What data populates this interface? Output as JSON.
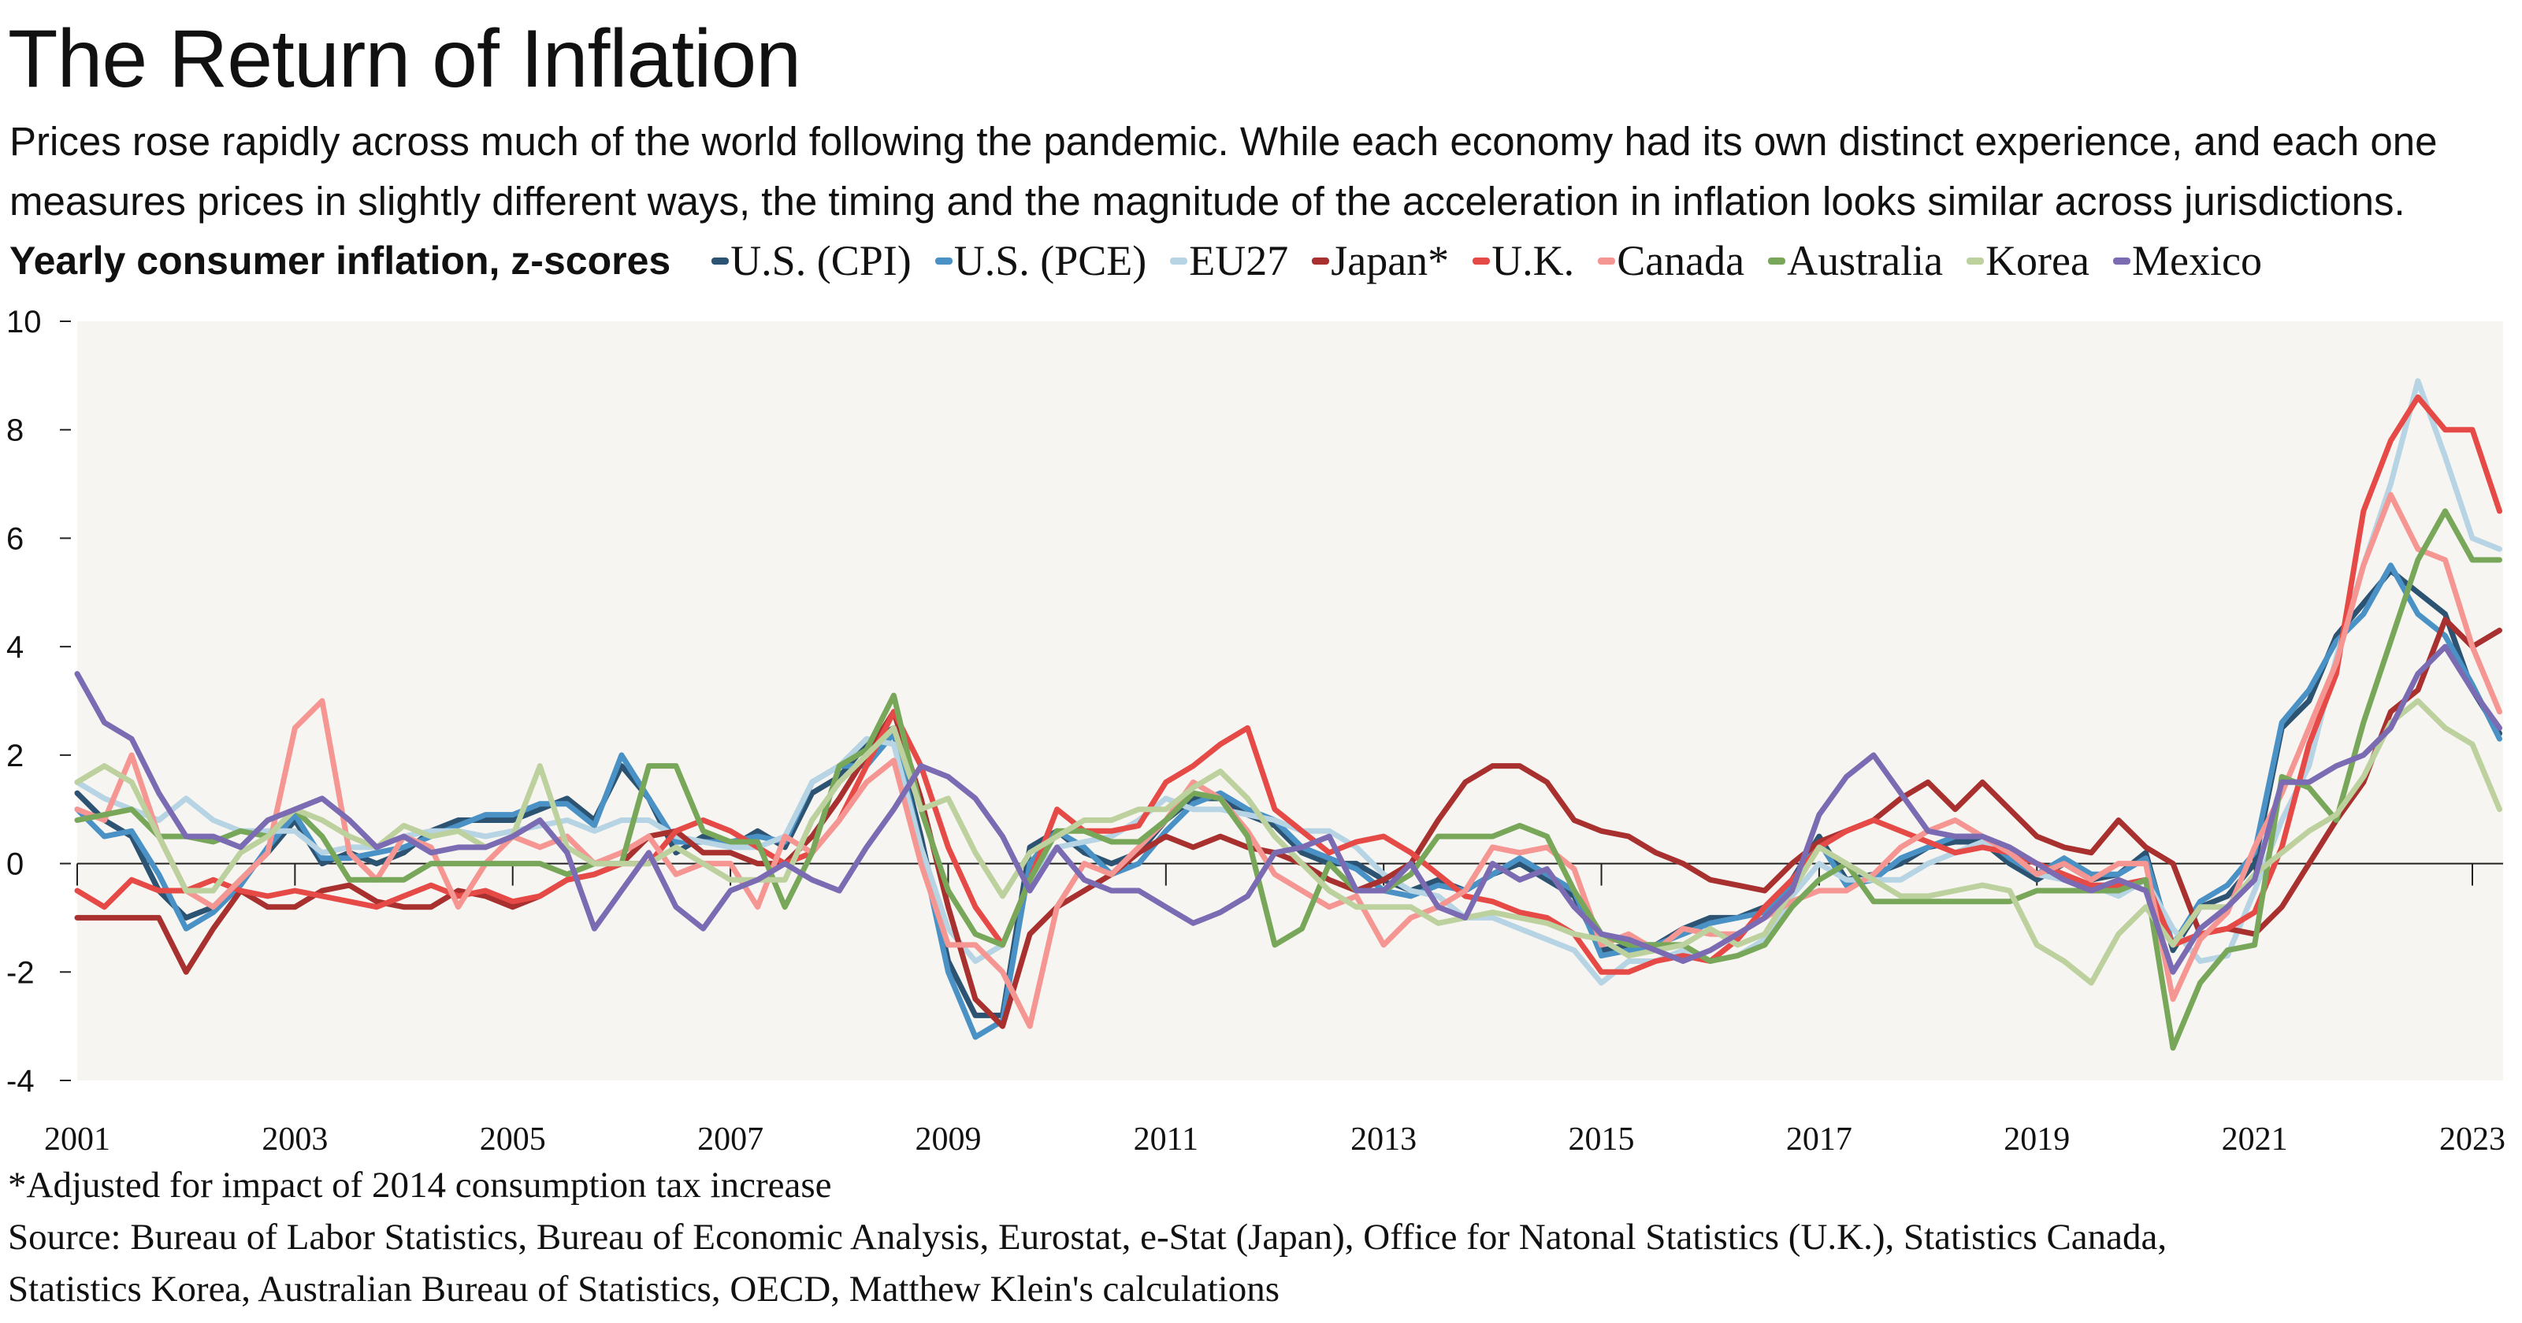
{
  "title": "The Return of Inflation",
  "subtitle": "Prices rose rapidly across much of the world following the pandemic. While each economy had its own distinct experience, and each one measures prices in slightly different ways, the timing and the magnitude of the acceleration in inflation looks similar across jurisdictions.",
  "footnote": "*Adjusted for impact of 2014 consumption tax increase",
  "source_line1": "Source: Bureau of Labor Statistics, Bureau of Economic Analysis, Eurostat, e-Stat (Japan), Office for Natonal Statistics (U.K.), Statistics Canada,",
  "source_line2": "Statistics Korea, Australian Bureau of Statistics, OECD, Matthew Klein's calculations",
  "chart_data": {
    "type": "line",
    "ylabel": "Yearly consumer inflation, z-scores",
    "ylim": [
      -4,
      10
    ],
    "yticks": [
      "10",
      "8",
      "6",
      "4",
      "2",
      "0",
      "-2",
      "-4"
    ],
    "xticks": [
      "2001",
      "2003",
      "2005",
      "2007",
      "2009",
      "2011",
      "2013",
      "2015",
      "2017",
      "2019",
      "2021",
      "2023"
    ],
    "xlim": [
      "2001-01",
      "2023-04"
    ],
    "grid": false,
    "legend_position": "top",
    "background": "#f6f5f1",
    "x": [
      "2001-01",
      "2001-04",
      "2001-07",
      "2001-10",
      "2002-01",
      "2002-04",
      "2002-07",
      "2002-10",
      "2003-01",
      "2003-04",
      "2003-07",
      "2003-10",
      "2004-01",
      "2004-04",
      "2004-07",
      "2004-10",
      "2005-01",
      "2005-04",
      "2005-07",
      "2005-10",
      "2006-01",
      "2006-04",
      "2006-07",
      "2006-10",
      "2007-01",
      "2007-04",
      "2007-07",
      "2007-10",
      "2008-01",
      "2008-04",
      "2008-07",
      "2008-10",
      "2009-01",
      "2009-04",
      "2009-07",
      "2009-10",
      "2010-01",
      "2010-04",
      "2010-07",
      "2010-10",
      "2011-01",
      "2011-04",
      "2011-07",
      "2011-10",
      "2012-01",
      "2012-04",
      "2012-07",
      "2012-10",
      "2013-01",
      "2013-04",
      "2013-07",
      "2013-10",
      "2014-01",
      "2014-04",
      "2014-07",
      "2014-10",
      "2015-01",
      "2015-04",
      "2015-07",
      "2015-10",
      "2016-01",
      "2016-04",
      "2016-07",
      "2016-10",
      "2017-01",
      "2017-04",
      "2017-07",
      "2017-10",
      "2018-01",
      "2018-04",
      "2018-07",
      "2018-10",
      "2019-01",
      "2019-04",
      "2019-07",
      "2019-10",
      "2020-01",
      "2020-04",
      "2020-07",
      "2020-10",
      "2021-01",
      "2021-04",
      "2021-07",
      "2021-10",
      "2022-01",
      "2022-04",
      "2022-07",
      "2022-10",
      "2023-01",
      "2023-04"
    ],
    "series": [
      {
        "name": "U.S. (CPI)",
        "color": "#2d5373",
        "values": [
          1.3,
          0.8,
          0.5,
          -0.5,
          -1,
          -0.8,
          -0.3,
          0.2,
          0.8,
          0,
          0.2,
          0,
          0.2,
          0.6,
          0.8,
          0.8,
          0.8,
          1,
          1.2,
          0.8,
          1.8,
          1.2,
          0.2,
          0.5,
          0.3,
          0.6,
          0.3,
          1.3,
          1.6,
          2.2,
          2.5,
          0.5,
          -1.8,
          -2.8,
          -2.8,
          0.3,
          0.6,
          0.2,
          0,
          0.2,
          0.8,
          1.2,
          1.2,
          0.9,
          0.7,
          0.2,
          0,
          0,
          -0.3,
          -0.5,
          -0.3,
          -0.5,
          -0.2,
          0,
          -0.3,
          -0.6,
          -1.6,
          -1.5,
          -1.5,
          -1.2,
          -1,
          -1,
          -0.8,
          -0.3,
          0.5,
          -0.3,
          -0.2,
          0,
          0.3,
          0.4,
          0.4,
          0,
          -0.3,
          0,
          -0.3,
          -0.2,
          0.2,
          -1.6,
          -0.8,
          -0.6,
          0,
          2.5,
          3,
          4.2,
          4.8,
          5.4,
          5,
          4.6,
          3.2,
          2.4
        ]
      },
      {
        "name": "U.S. (PCE)",
        "color": "#4a92c6",
        "values": [
          1,
          0.5,
          0.6,
          -0.2,
          -1.2,
          -0.9,
          -0.4,
          0.3,
          0.9,
          0.1,
          0.1,
          0.2,
          0.3,
          0.5,
          0.7,
          0.9,
          0.9,
          1.1,
          1.1,
          0.7,
          2,
          1.2,
          0.4,
          0.4,
          0.4,
          0.5,
          0.4,
          1.5,
          1.8,
          1.8,
          2.4,
          0.3,
          -2,
          -3.2,
          -2.9,
          0,
          0.6,
          0.3,
          -0.2,
          0,
          0.6,
          1.1,
          1.3,
          1,
          0.8,
          0.3,
          0.1,
          -0.1,
          -0.5,
          -0.6,
          -0.4,
          -0.5,
          -0.2,
          0.1,
          -0.2,
          -0.5,
          -1.7,
          -1.6,
          -1.5,
          -1.3,
          -1.1,
          -1,
          -0.9,
          -0.4,
          0.4,
          -0.4,
          -0.3,
          0.1,
          0.3,
          0.5,
          0.5,
          0.1,
          -0.2,
          0.1,
          -0.2,
          -0.2,
          0.1,
          -1.5,
          -0.7,
          -0.4,
          0.2,
          2.6,
          3.2,
          4.1,
          4.6,
          5.5,
          4.6,
          4.2,
          3.3,
          2.3
        ]
      },
      {
        "name": "EU27",
        "color": "#b6d4e4",
        "values": [
          1.5,
          1.2,
          1,
          0.8,
          1.2,
          0.8,
          0.6,
          0.6,
          0.6,
          0.2,
          0.3,
          0.3,
          0.5,
          0.6,
          0.6,
          0.5,
          0.6,
          0.7,
          0.8,
          0.6,
          0.8,
          0.8,
          0.5,
          0.4,
          0.3,
          0.3,
          0.5,
          1.5,
          1.8,
          2.3,
          2.2,
          0.3,
          -1.2,
          -1.8,
          -1.5,
          -0.3,
          0.3,
          0.4,
          0.5,
          0.8,
          1.2,
          1,
          1,
          0.9,
          0.8,
          0.6,
          0.6,
          0.3,
          -0.2,
          -0.5,
          -0.6,
          -1,
          -1,
          -1.2,
          -1.4,
          -1.6,
          -2.2,
          -1.8,
          -1.8,
          -1.6,
          -1.8,
          -1.7,
          -1.4,
          -0.6,
          0,
          -0.3,
          -0.3,
          -0.3,
          0,
          0.2,
          0.4,
          0.2,
          -0.2,
          -0.3,
          -0.4,
          -0.6,
          -0.3,
          -1.2,
          -1.8,
          -1.7,
          -0.5,
          0.8,
          1.8,
          3.8,
          5.5,
          7,
          8.9,
          7.5,
          6,
          5.8
        ]
      },
      {
        "name": "Japan*",
        "color": "#a8302e",
        "values": [
          -1,
          -1,
          -1,
          -1,
          -2,
          -1.2,
          -0.5,
          -0.8,
          -0.8,
          -0.5,
          -0.4,
          -0.7,
          -0.8,
          -0.8,
          -0.5,
          -0.6,
          -0.8,
          -0.6,
          -0.3,
          -0.2,
          0,
          0.5,
          0.6,
          0.2,
          0.2,
          0,
          0,
          0.5,
          1.2,
          2,
          2.8,
          1.2,
          -0.8,
          -2.5,
          -3,
          -1.3,
          -0.8,
          -0.5,
          -0.2,
          0.2,
          0.5,
          0.3,
          0.5,
          0.3,
          0.2,
          0,
          -0.3,
          -0.5,
          -0.3,
          0,
          0.8,
          1.5,
          1.8,
          1.8,
          1.5,
          0.8,
          0.6,
          0.5,
          0.2,
          0,
          -0.3,
          -0.4,
          -0.5,
          0,
          0.4,
          0.6,
          0.8,
          1.2,
          1.5,
          1,
          1.5,
          1,
          0.5,
          0.3,
          0.2,
          0.8,
          0.3,
          0,
          -1.3,
          -1.2,
          -1.3,
          -0.8,
          0,
          0.8,
          1.5,
          2.8,
          3.2,
          4.5,
          4,
          4.3
        ]
      },
      {
        "name": "U.K.",
        "color": "#e64a47",
        "values": [
          -0.5,
          -0.8,
          -0.3,
          -0.5,
          -0.5,
          -0.3,
          -0.5,
          -0.6,
          -0.5,
          -0.6,
          -0.7,
          -0.8,
          -0.6,
          -0.4,
          -0.6,
          -0.5,
          -0.7,
          -0.6,
          -0.3,
          -0.2,
          0,
          0,
          0.6,
          0.8,
          0.6,
          0.3,
          0,
          0.2,
          0.8,
          1.8,
          2.8,
          1.8,
          0.3,
          -0.8,
          -1.5,
          -0.3,
          1,
          0.6,
          0.6,
          0.7,
          1.5,
          1.8,
          2.2,
          2.5,
          1,
          0.6,
          0.2,
          0.4,
          0.5,
          0.2,
          -0.2,
          -0.6,
          -0.7,
          -0.9,
          -1,
          -1.3,
          -2,
          -2,
          -1.8,
          -1.7,
          -1.8,
          -1.4,
          -0.8,
          -0.3,
          0.3,
          0.6,
          0.8,
          0.6,
          0.4,
          0.2,
          0.3,
          0.2,
          0,
          -0.2,
          -0.4,
          -0.4,
          -0.3,
          -1.5,
          -1.3,
          -1.2,
          -0.9,
          0.3,
          2.2,
          3.5,
          6.5,
          7.8,
          8.6,
          8,
          8,
          6.5
        ]
      },
      {
        "name": "Canada",
        "color": "#f59693",
        "values": [
          1,
          0.8,
          2,
          0.5,
          -0.5,
          -0.8,
          -0.3,
          0.2,
          2.5,
          3,
          0.2,
          -0.3,
          0.5,
          0.3,
          -0.8,
          0,
          0.5,
          0.3,
          0.5,
          0,
          0.2,
          0.5,
          -0.2,
          0,
          0,
          -0.8,
          0.5,
          0.2,
          0.8,
          1.5,
          1.9,
          0,
          -1.5,
          -1.5,
          -2,
          -3,
          -0.8,
          0,
          -0.2,
          0.3,
          0.8,
          1.5,
          1.2,
          0.6,
          -0.2,
          -0.5,
          -0.8,
          -0.6,
          -1.5,
          -1,
          -0.8,
          -0.5,
          0.3,
          0.2,
          0.3,
          -0.1,
          -1.5,
          -1.3,
          -1.6,
          -1.2,
          -1.3,
          -1.3,
          -1,
          -0.7,
          -0.5,
          -0.5,
          -0.2,
          0.3,
          0.6,
          0.8,
          0.5,
          0.2,
          -0.2,
          0,
          -0.3,
          0,
          0,
          -2.5,
          -1.4,
          -0.9,
          0.3,
          1.3,
          2.5,
          3.7,
          5.5,
          6.8,
          5.8,
          5.6,
          4,
          2.8
        ]
      },
      {
        "name": "Australia",
        "color": "#78a75a",
        "values": [
          0.8,
          0.9,
          1,
          0.5,
          0.5,
          0.4,
          0.6,
          0.5,
          1,
          0.5,
          -0.3,
          -0.3,
          -0.3,
          0,
          0,
          0,
          0,
          0,
          -0.2,
          0,
          0,
          1.8,
          1.8,
          0.6,
          0.4,
          0.4,
          -0.8,
          0.2,
          1.8,
          2.1,
          3.1,
          1,
          -0.5,
          -1.3,
          -1.5,
          -0.3,
          0.6,
          0.6,
          0.4,
          0.4,
          0.8,
          1.3,
          1.2,
          0.5,
          -1.5,
          -1.2,
          0,
          -0.5,
          -0.5,
          -0.2,
          0.5,
          0.5,
          0.5,
          0.7,
          0.5,
          -0.5,
          -1.3,
          -1.5,
          -1.5,
          -1.5,
          -1.8,
          -1.7,
          -1.5,
          -0.8,
          -0.3,
          0,
          -0.7,
          -0.7,
          -0.7,
          -0.7,
          -0.7,
          -0.7,
          -0.5,
          -0.5,
          -0.5,
          -0.5,
          -0.3,
          -3.4,
          -2.2,
          -1.6,
          -1.5,
          1.6,
          1.4,
          0.8,
          2.6,
          4.1,
          5.6,
          6.5,
          5.6,
          5.6
        ]
      },
      {
        "name": "Korea",
        "color": "#bcd19d",
        "values": [
          1.5,
          1.8,
          1.5,
          0.5,
          -0.5,
          -0.5,
          0.2,
          0.5,
          1,
          0.8,
          0.5,
          0.3,
          0.7,
          0.5,
          0.6,
          0.3,
          0.5,
          1.8,
          0.3,
          0,
          0,
          0,
          0.3,
          0,
          -0.3,
          -0.3,
          -0.3,
          0.8,
          1.5,
          2,
          2.5,
          1,
          1.2,
          0.2,
          -0.6,
          0.2,
          0.5,
          0.8,
          0.8,
          1,
          1,
          1.4,
          1.7,
          1.2,
          0.5,
          0,
          -0.5,
          -0.8,
          -0.8,
          -0.8,
          -1.1,
          -1,
          -0.9,
          -1,
          -1.1,
          -1.3,
          -1.4,
          -1.7,
          -1.6,
          -1.5,
          -1.2,
          -1.5,
          -1.3,
          -0.5,
          0.3,
          0,
          -0.3,
          -0.6,
          -0.6,
          -0.5,
          -0.4,
          -0.5,
          -1.5,
          -1.8,
          -2.2,
          -1.3,
          -0.8,
          -1.5,
          -0.8,
          -0.8,
          -0.2,
          0.2,
          0.6,
          0.9,
          1.6,
          2.6,
          3,
          2.5,
          2.2,
          1
        ]
      },
      {
        "name": "Mexico",
        "color": "#7b6bb3",
        "values": [
          3.5,
          2.6,
          2.3,
          1.3,
          0.5,
          0.5,
          0.3,
          0.8,
          1,
          1.2,
          0.8,
          0.3,
          0.5,
          0.2,
          0.3,
          0.3,
          0.5,
          0.8,
          0.2,
          -1.2,
          -0.5,
          0.2,
          -0.8,
          -1.2,
          -0.5,
          -0.3,
          0,
          -0.3,
          -0.5,
          0.3,
          1,
          1.8,
          1.6,
          1.2,
          0.5,
          -0.5,
          0.3,
          -0.3,
          -0.5,
          -0.5,
          -0.8,
          -1.1,
          -0.9,
          -0.6,
          0.2,
          0.3,
          0.5,
          -0.5,
          -0.5,
          0,
          -0.8,
          -1,
          0,
          -0.3,
          -0.1,
          -0.8,
          -1.3,
          -1.4,
          -1.6,
          -1.8,
          -1.6,
          -1.3,
          -1,
          -0.5,
          0.9,
          1.6,
          2,
          1.3,
          0.6,
          0.5,
          0.5,
          0.3,
          0,
          -0.3,
          -0.5,
          -0.3,
          -0.5,
          -2,
          -1.2,
          -0.8,
          -0.3,
          1.5,
          1.5,
          1.8,
          2,
          2.5,
          3.5,
          4,
          3.2,
          2.5
        ]
      }
    ]
  }
}
